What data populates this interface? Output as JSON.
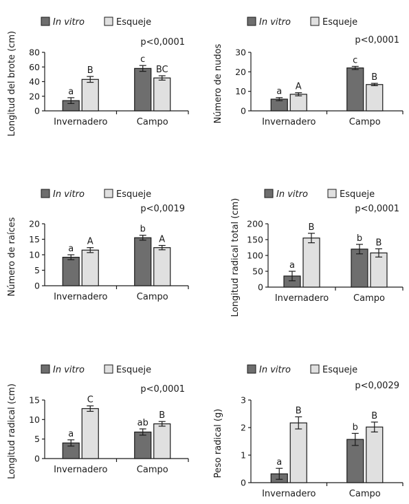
{
  "chart_data": [
    {
      "type": "bar",
      "ylabel": "Longitud del brote (cm)",
      "p_value": "p<0,0001",
      "categories": [
        "Invernadero",
        "Campo"
      ],
      "ylim": [
        0,
        80
      ],
      "yticks": [
        0,
        20,
        40,
        60,
        80
      ],
      "series": [
        {
          "name": "In vitro",
          "values": [
            14,
            58
          ],
          "errors": [
            4,
            4
          ],
          "letters": [
            "a",
            "c"
          ]
        },
        {
          "name": "Esqueje",
          "values": [
            43,
            45
          ],
          "errors": [
            4,
            3
          ],
          "letters": [
            "B",
            "BC"
          ]
        }
      ]
    },
    {
      "type": "bar",
      "ylabel": "Número de nudos",
      "p_value": "p<0,0001",
      "categories": [
        "Invernadero",
        "Campo"
      ],
      "ylim": [
        0,
        30
      ],
      "yticks": [
        0,
        10,
        20,
        30
      ],
      "series": [
        {
          "name": "In vitro",
          "values": [
            6,
            22
          ],
          "errors": [
            0.8,
            0.8
          ],
          "letters": [
            "a",
            "c"
          ]
        },
        {
          "name": "Esqueje",
          "values": [
            8.5,
            13.5
          ],
          "errors": [
            0.8,
            0.6
          ],
          "letters": [
            "A",
            "B"
          ]
        }
      ]
    },
    {
      "type": "bar",
      "ylabel": "Número de raíces",
      "p_value": "p<0,0019",
      "categories": [
        "Invernadero",
        "Campo"
      ],
      "ylim": [
        0,
        20
      ],
      "yticks": [
        0,
        5,
        10,
        15,
        20
      ],
      "series": [
        {
          "name": "In vitro",
          "values": [
            9.2,
            15.5
          ],
          "errors": [
            0.8,
            0.8
          ],
          "letters": [
            "a",
            "b"
          ]
        },
        {
          "name": "Esqueje",
          "values": [
            11.5,
            12.3
          ],
          "errors": [
            0.8,
            0.7
          ],
          "letters": [
            "A",
            "A"
          ]
        }
      ]
    },
    {
      "type": "bar",
      "ylabel": "Longitud radical total (cm)",
      "p_value": "p<0,0001",
      "categories": [
        "Invernadero",
        "Campo"
      ],
      "ylim": [
        0,
        200
      ],
      "yticks": [
        0,
        50,
        100,
        150,
        200
      ],
      "series": [
        {
          "name": "In vitro",
          "values": [
            35,
            120
          ],
          "errors": [
            15,
            15
          ],
          "letters": [
            "a",
            "b"
          ]
        },
        {
          "name": "Esqueje",
          "values": [
            155,
            108
          ],
          "errors": [
            15,
            13
          ],
          "letters": [
            "B",
            "B"
          ]
        }
      ]
    },
    {
      "type": "bar",
      "ylabel": "Longitud radical (cm)",
      "p_value": "p<0,0001",
      "categories": [
        "Invernadero",
        "Campo"
      ],
      "ylim": [
        0,
        15
      ],
      "yticks": [
        0,
        5,
        10,
        15
      ],
      "series": [
        {
          "name": "In vitro",
          "values": [
            4,
            6.8
          ],
          "errors": [
            0.8,
            0.8
          ],
          "letters": [
            "a",
            "ab"
          ]
        },
        {
          "name": "Esqueje",
          "values": [
            12.8,
            8.9
          ],
          "errors": [
            0.7,
            0.6
          ],
          "letters": [
            "C",
            "B"
          ]
        }
      ]
    },
    {
      "type": "bar",
      "ylabel": "Peso radical (g)",
      "p_value": "p<0,0029",
      "categories": [
        "Invernadero",
        "Campo"
      ],
      "ylim": [
        0,
        3
      ],
      "yticks": [
        0,
        1,
        2,
        3
      ],
      "series": [
        {
          "name": "In vitro",
          "values": [
            0.32,
            1.57
          ],
          "errors": [
            0.2,
            0.22
          ],
          "letters": [
            "a",
            "b"
          ]
        },
        {
          "name": "Esqueje",
          "values": [
            2.17,
            2.02
          ],
          "errors": [
            0.22,
            0.18
          ],
          "letters": [
            "B",
            "B"
          ]
        }
      ]
    }
  ],
  "colors": {
    "in_vitro": "#6e6e6e",
    "esqueje": "#e0e0e0",
    "outline": "#1a1a1a"
  }
}
